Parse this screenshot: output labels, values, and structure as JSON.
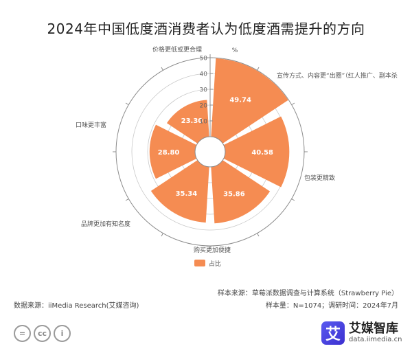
{
  "colors": {
    "bar": "#F58C52",
    "axis": "#8C8C8C",
    "grid": "#C8C8C8"
  },
  "header": {
    "title": "2024年中国低度酒消费者认为低度酒需提升的方向"
  },
  "chart_data": {
    "type": "polar-bar",
    "categories": [
      "宣传方式、内容更“出圈”（红人推广、副本杀",
      "包装更精致",
      "购买更加便捷",
      "品牌更加有知名度",
      "口味更丰富",
      "价格更低或更合理"
    ],
    "series": [
      {
        "name": "占比",
        "values": [
          49.74,
          40.58,
          35.86,
          35.34,
          28.8,
          23.3
        ]
      }
    ],
    "value_labels": [
      "49.74",
      "40.58",
      "35.86",
      "35.34",
      "28.80",
      "23.30"
    ],
    "radial_ticks": [
      "50",
      "40",
      "30",
      "20",
      "10"
    ],
    "unit": "%",
    "rlim": [
      0,
      50
    ],
    "legend": "bottom-center"
  },
  "notes": {
    "sample_source": "样本来源：草莓派数据调查与计算系统（Strawberry Pie）",
    "sample_size": "样本量：N=1074；调研时间：2024年7月",
    "data_source": "数据来源：iiMedia Research(艾媒咨询)"
  },
  "footer": {
    "license_icons": [
      "=",
      "cc",
      "i"
    ],
    "brand_logo_char": "艾",
    "brand_name": "艾媒智库",
    "brand_url": "data.iimedia.cn"
  }
}
